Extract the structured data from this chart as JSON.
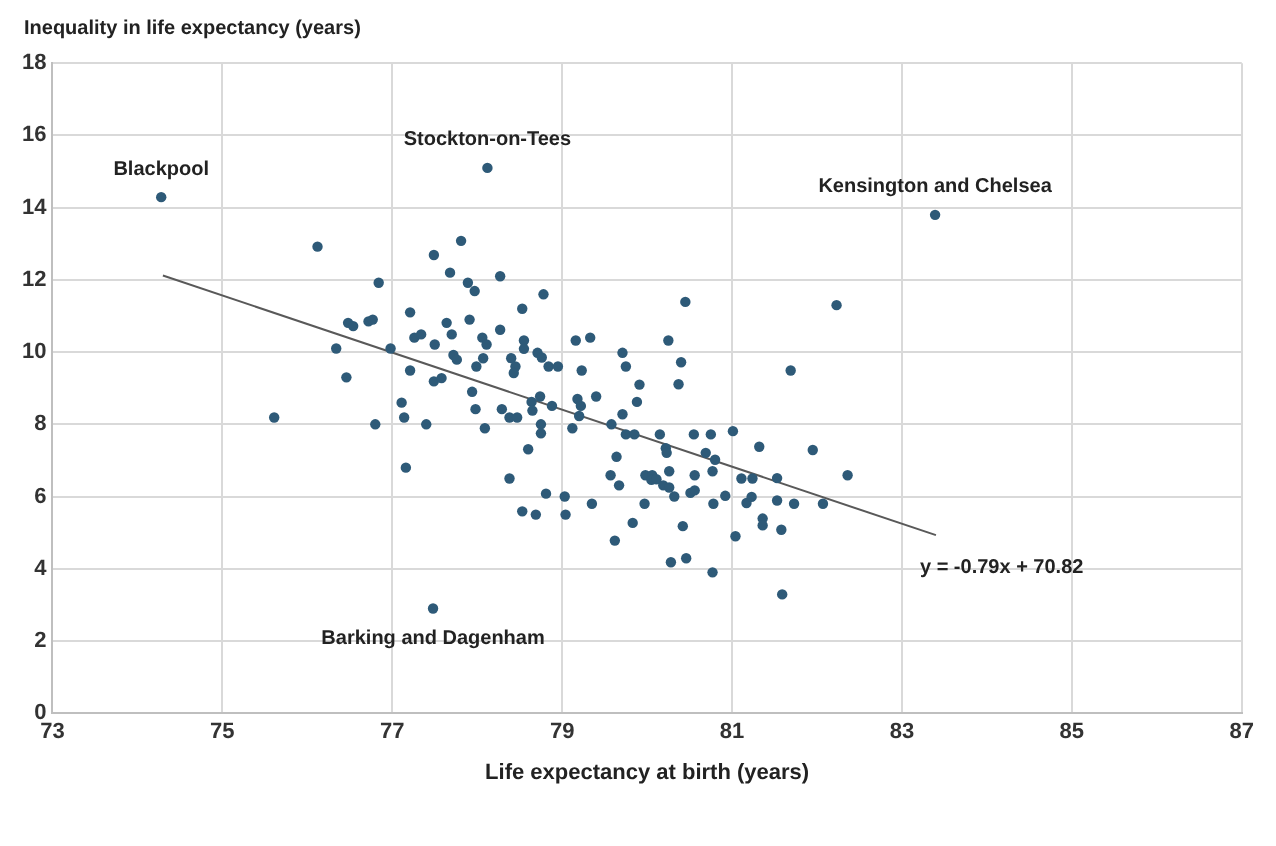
{
  "chart_data": {
    "type": "scatter",
    "xlabel": "Life expectancy at birth (years)",
    "ylabel": "Inequality in life expectancy (years)",
    "xlim": [
      73,
      87
    ],
    "xticks": [
      73,
      75,
      77,
      79,
      81,
      83,
      85,
      87
    ],
    "ylim": [
      0,
      18
    ],
    "yticks": [
      0,
      2,
      4,
      6,
      8,
      10,
      12,
      14,
      16,
      18
    ],
    "grid": true,
    "legend": false,
    "marker": "circle",
    "series": [
      {
        "type": "scatter",
        "color": "#2e5a78",
        "x": [
          74.28,
          76.12,
          77.49,
          77.81,
          77.68,
          76.84,
          77.89,
          77.97,
          76.48,
          76.54,
          76.72,
          76.77,
          77.21,
          77.64,
          77.91,
          77.7,
          77.26,
          77.34,
          77.5,
          76.34,
          76.98,
          77.72,
          77.76,
          76.46,
          77.21,
          77.49,
          77.58,
          77.94,
          77.98,
          77.11,
          75.61,
          76.8,
          77.14,
          77.4,
          77.16,
          77.48,
          78.12,
          78.27,
          78.53,
          78.78,
          78.27,
          78.06,
          78.11,
          78.07,
          78.55,
          78.55,
          78.71,
          78.76,
          79.16,
          79.33,
          78.4,
          78.45,
          78.43,
          78.84,
          78.95,
          79.23,
          79.71,
          79.75,
          77.99,
          79.91,
          78.29,
          78.38,
          78.47,
          78.64,
          78.74,
          78.65,
          78.88,
          79.18,
          79.22,
          79.4,
          79.2,
          79.12,
          78.75,
          78.75,
          78.09,
          79.88,
          79.71,
          79.58,
          79.75,
          79.85,
          80.15,
          80.25,
          80.45,
          80.4,
          80.37,
          80.55,
          80.75,
          80.22,
          80.23,
          80.26,
          79.64,
          79.57,
          79.67,
          79.98,
          80.06,
          80.05,
          80.11,
          80.19,
          80.26,
          80.32,
          80.51,
          80.56,
          80.56,
          80.77,
          80.69,
          80.8,
          80.92,
          80.78,
          79.97,
          79.83,
          79.62,
          80.42,
          80.28,
          80.46,
          80.77,
          81.04,
          78.38,
          78.6,
          78.81,
          79.03,
          79.04,
          79.35,
          78.53,
          78.69,
          81.01,
          83.39,
          82.23,
          81.69,
          81.32,
          81.95,
          82.36,
          81.53,
          81.11,
          81.24,
          81.17,
          81.23,
          81.53,
          81.73,
          82.07,
          81.36,
          81.36,
          81.58,
          81.59
        ],
        "values": [
          14.29,
          12.92,
          12.69,
          13.08,
          12.2,
          11.92,
          11.92,
          11.69,
          10.81,
          10.72,
          10.85,
          10.9,
          11.1,
          10.81,
          10.9,
          10.49,
          10.4,
          10.49,
          10.21,
          10.1,
          10.1,
          9.92,
          9.79,
          9.3,
          9.49,
          9.19,
          9.28,
          8.9,
          8.42,
          8.6,
          8.19,
          8.0,
          8.19,
          8.0,
          6.8,
          2.9,
          15.1,
          12.1,
          11.2,
          11.6,
          10.62,
          10.4,
          10.21,
          9.83,
          10.32,
          10.09,
          9.98,
          9.85,
          10.32,
          10.4,
          9.83,
          9.6,
          9.42,
          9.6,
          9.6,
          9.49,
          9.98,
          9.6,
          9.6,
          9.1,
          8.42,
          8.19,
          8.19,
          8.62,
          8.77,
          8.38,
          8.51,
          8.7,
          8.51,
          8.77,
          8.23,
          7.89,
          8.0,
          7.75,
          7.89,
          8.62,
          8.28,
          8.0,
          7.72,
          7.72,
          7.72,
          10.32,
          11.39,
          9.72,
          9.11,
          7.72,
          7.72,
          7.34,
          7.21,
          6.7,
          7.1,
          6.59,
          6.31,
          6.59,
          6.59,
          6.46,
          6.48,
          6.31,
          6.25,
          6.0,
          6.1,
          6.17,
          6.59,
          6.7,
          7.21,
          7.02,
          6.02,
          5.8,
          5.8,
          5.27,
          4.78,
          5.18,
          4.18,
          4.29,
          3.9,
          4.9,
          6.5,
          7.31,
          6.08,
          6.0,
          5.5,
          5.8,
          5.59,
          5.5,
          7.81,
          13.8,
          11.3,
          9.49,
          7.38,
          7.29,
          6.59,
          6.51,
          6.5,
          6.5,
          5.82,
          5.99,
          5.89,
          5.8,
          5.8,
          5.39,
          5.2,
          5.08,
          3.29
        ]
      },
      {
        "type": "line",
        "color": "#595959",
        "marker": "none",
        "x": [
          74.3,
          83.4
        ],
        "values": [
          12.12,
          4.93
        ]
      }
    ],
    "annotations": [
      {
        "text": "Blackpool",
        "x": 74.28,
        "y": 14.29
      },
      {
        "text": "Stockton-on-Tees",
        "x": 78.12,
        "y": 15.1
      },
      {
        "text": "Kensington and Chelsea",
        "x": 83.39,
        "y": 13.8
      },
      {
        "text": "Barking and Dagenham",
        "x": 77.48,
        "y": 2.9
      },
      {
        "text": "y = -0.79x + 70.82",
        "x": 83.4,
        "y": 4.93
      }
    ]
  }
}
